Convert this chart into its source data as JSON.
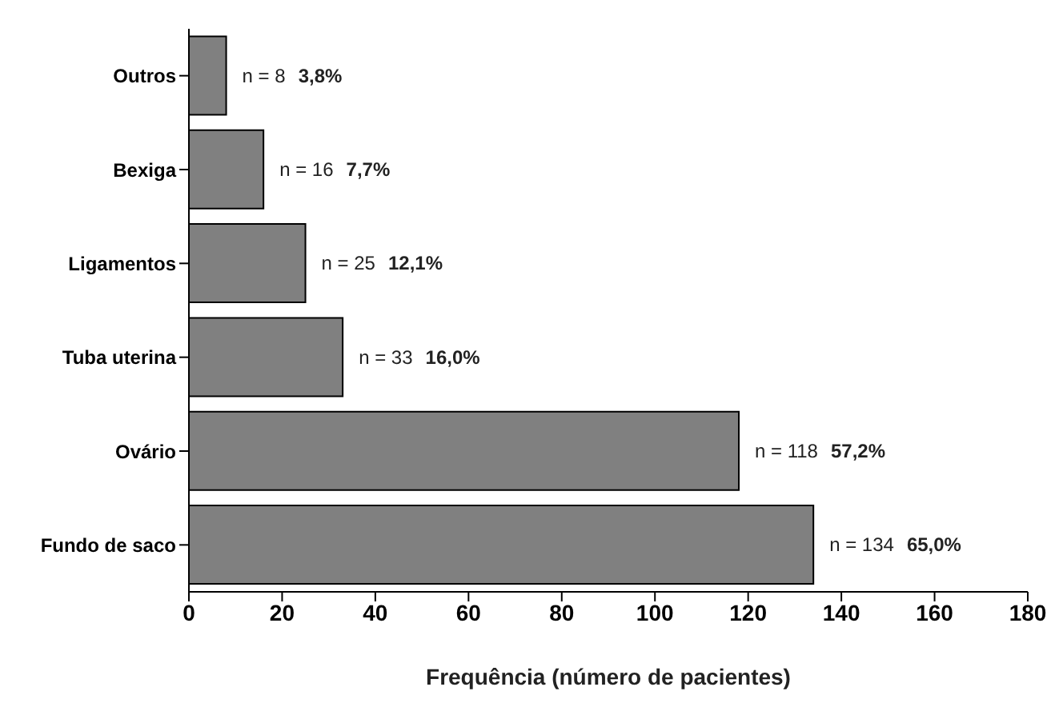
{
  "chart_data": {
    "type": "bar",
    "orientation": "horizontal",
    "xlabel": "Frequência (número de pacientes)",
    "categories": [
      "Outros",
      "Bexiga",
      "Ligamentos",
      "Tuba uterina",
      "Ovário",
      "Fundo de saco"
    ],
    "values": [
      8,
      16,
      25,
      33,
      118,
      134
    ],
    "value_labels": [
      "n = 8 3,8%",
      "n = 16 7,7%",
      "n = 25 12,1%",
      "n = 33 16,0%",
      "n = 118 57,2%",
      "n = 134 65,0%"
    ],
    "color": "#808080",
    "xlim": [
      0,
      180
    ],
    "xticks": [
      0,
      20,
      40,
      60,
      80,
      100,
      120,
      140,
      160,
      180
    ],
    "grid": false,
    "legend": false
  }
}
